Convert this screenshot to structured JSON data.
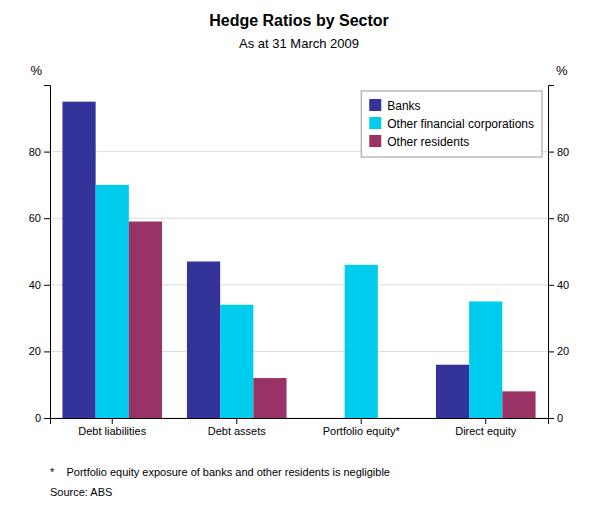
{
  "chart_data": {
    "type": "bar",
    "title": "Hedge Ratios by Sector",
    "subtitle": "As at 31 March 2009",
    "categories": [
      "Debt liabilities",
      "Debt assets",
      "Portfolio equity*",
      "Direct equity"
    ],
    "series": [
      {
        "name": "Banks",
        "color": "#333399",
        "values": [
          95,
          47,
          0,
          16
        ]
      },
      {
        "name": "Other financial corporations",
        "color": "#00CCEE",
        "values": [
          70,
          34,
          46,
          35
        ]
      },
      {
        "name": "Other residents",
        "color": "#993366",
        "values": [
          59,
          12,
          0,
          8
        ]
      }
    ],
    "ylim": [
      0,
      100
    ],
    "yticks": [
      0,
      20,
      40,
      60,
      80
    ],
    "y2lim": [
      0,
      100
    ],
    "y2ticks": [
      0,
      20,
      40,
      60,
      80
    ],
    "ylabel": "%",
    "y2label": "%",
    "footnote": "*    Portfolio equity exposure of banks and other residents is negligible",
    "source": "Source: ABS",
    "grid": true,
    "legend": "upper right"
  }
}
